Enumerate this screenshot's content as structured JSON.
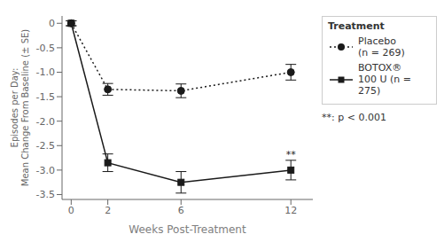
{
  "chart_data": {
    "type": "line",
    "xlabel": "Weeks Post-Treatment",
    "ylabel": "Episodes per Day:\nMean Change From Baseline (± SE)",
    "x": [
      0,
      2,
      6,
      12
    ],
    "series": [
      {
        "name": "Placebo\n(n = 269)",
        "color": "#1a1a1a",
        "values": [
          0.0,
          -1.35,
          -1.38,
          -1.0
        ],
        "errors": [
          0.05,
          0.12,
          0.14,
          0.16
        ],
        "marker": "circle",
        "line_style": "dotted"
      },
      {
        "name": "BOTOX®\n100 U (n = 275)",
        "color": "#1a1a1a",
        "values": [
          0.0,
          -2.85,
          -3.25,
          -3.0
        ],
        "errors": [
          0.05,
          0.18,
          0.22,
          0.2
        ],
        "marker": "square",
        "line_style": "solid"
      }
    ],
    "xlim": [
      -0.5,
      13.2
    ],
    "xticks": [
      0,
      2,
      6,
      12
    ],
    "ylim": [
      -3.6,
      0.15
    ],
    "yticks": [
      0,
      -0.5,
      {
        "value": -1.0,
        "label": "-1.0"
      },
      -1.5,
      {
        "value": -2.0,
        "label": "-2.0"
      },
      -2.5,
      {
        "value": -3.0,
        "label": "-3.0"
      },
      -3.5
    ],
    "grid": false,
    "legend": "upper right",
    "legend_title": "Treatment",
    "annotations": [
      {
        "text": "**",
        "x": 12,
        "series": "BOTOX®\n100 U (n = 275)"
      },
      {
        "text": "**: p < 0.001"
      }
    ]
  }
}
